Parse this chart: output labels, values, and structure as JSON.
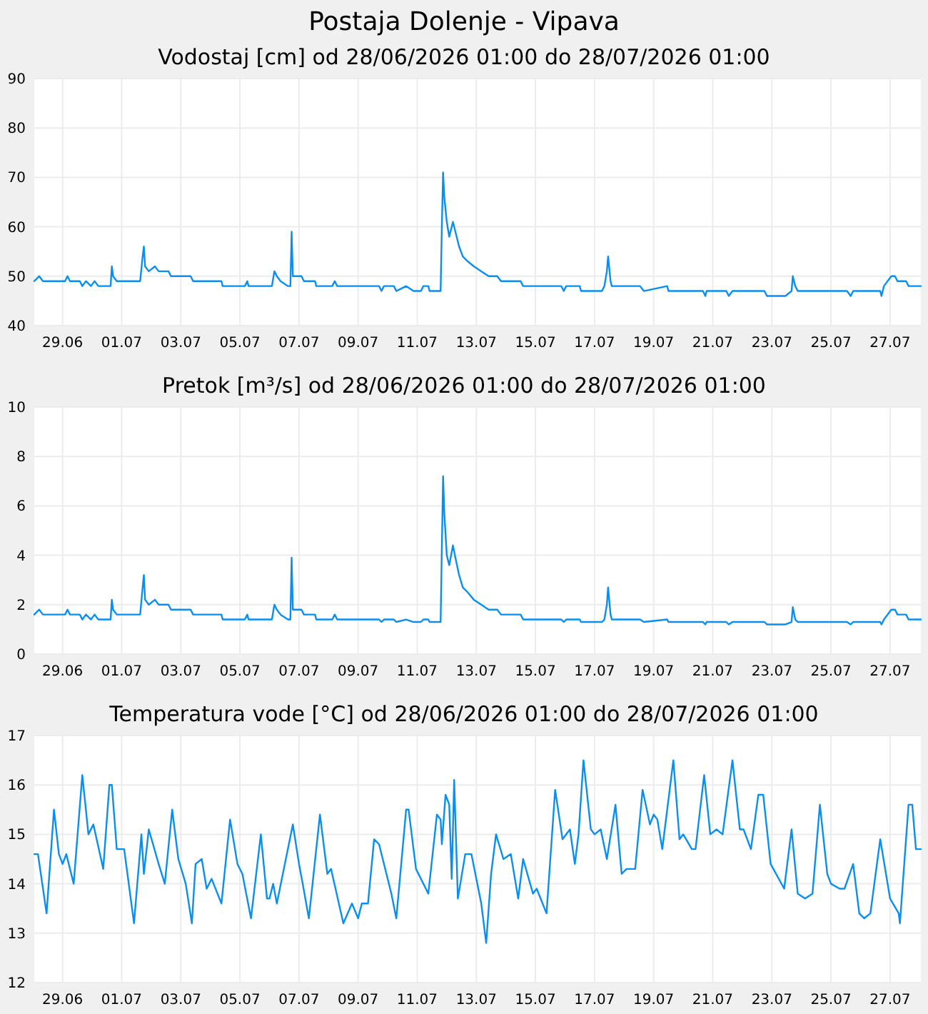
{
  "chart_data": [
    {
      "type": "line",
      "title": "Postaja Dolenje - Vipava",
      "subtitle": "Vodostaj [cm] od 28/06/2026 01:00 do 28/07/2026 01:00",
      "grid": true,
      "xlim": [
        "2026-06-28T01:00",
        "2026-07-28T01:00"
      ],
      "xticks": [
        {
          "value": "2026-06-29",
          "label": "29.06"
        },
        {
          "value": "2026-07-01",
          "label": "01.07"
        },
        {
          "value": "2026-07-03",
          "label": "03.07"
        },
        {
          "value": "2026-07-05",
          "label": "05.07"
        },
        {
          "value": "2026-07-07",
          "label": "07.07"
        },
        {
          "value": "2026-07-09",
          "label": "09.07"
        },
        {
          "value": "2026-07-11",
          "label": "11.07"
        },
        {
          "value": "2026-07-13",
          "label": "13.07"
        },
        {
          "value": "2026-07-15",
          "label": "15.07"
        },
        {
          "value": "2026-07-17",
          "label": "17.07"
        },
        {
          "value": "2026-07-19",
          "label": "19.07"
        },
        {
          "value": "2026-07-21",
          "label": "21.07"
        },
        {
          "value": "2026-07-23",
          "label": "23.07"
        },
        {
          "value": "2026-07-25",
          "label": "25.07"
        },
        {
          "value": "2026-07-27",
          "label": "27.07"
        }
      ],
      "ylim": [
        40,
        90
      ],
      "yticks": [
        40,
        50,
        60,
        70,
        80,
        90
      ],
      "x": [
        "2026-06-28T01:00",
        "2026-06-28T05:00",
        "2026-06-28T08:00",
        "2026-06-29T02:00",
        "2026-06-29T04:00",
        "2026-06-29T06:00",
        "2026-06-29T14:00",
        "2026-06-29T16:00",
        "2026-06-29T19:00",
        "2026-06-29T23:00",
        "2026-06-30T02:00",
        "2026-06-30T05:00",
        "2026-06-30T15:00",
        "2026-06-30T16:00",
        "2026-06-30T17:00",
        "2026-06-30T20:00",
        "2026-07-01T15:00",
        "2026-07-01T17:00",
        "2026-07-01T18:00",
        "2026-07-01T19:00",
        "2026-07-01T22:00",
        "2026-07-02T03:00",
        "2026-07-02T06:00",
        "2026-07-02T14:00",
        "2026-07-02T16:00",
        "2026-07-03T08:00",
        "2026-07-03T10:00",
        "2026-07-04T09:00",
        "2026-07-04T10:00",
        "2026-07-05T04:00",
        "2026-07-05T06:00",
        "2026-07-05T07:00",
        "2026-07-06T02:00",
        "2026-07-06T04:00",
        "2026-07-06T06:00",
        "2026-07-06T09:00",
        "2026-07-06T15:00",
        "2026-07-06T17:00",
        "2026-07-06T18:00",
        "2026-07-06T19:00",
        "2026-07-07T02:00",
        "2026-07-07T04:00",
        "2026-07-07T13:00",
        "2026-07-07T14:00",
        "2026-07-08T03:00",
        "2026-07-08T05:00",
        "2026-07-08T07:00",
        "2026-07-09T17:00",
        "2026-07-09T19:00",
        "2026-07-09T21:00",
        "2026-07-10T05:00",
        "2026-07-10T07:00",
        "2026-07-10T15:00",
        "2026-07-10T21:00",
        "2026-07-11T03:00",
        "2026-07-11T05:00",
        "2026-07-11T09:00",
        "2026-07-11T10:00",
        "2026-07-11T19:00",
        "2026-07-11T20:00",
        "2026-07-11T21:00",
        "2026-07-11T22:00",
        "2026-07-12T00:00",
        "2026-07-12T02:00",
        "2026-07-12T05:00",
        "2026-07-12T07:00",
        "2026-07-12T10:00",
        "2026-07-12T13:00",
        "2026-07-12T17:00",
        "2026-07-12T22:00",
        "2026-07-13T04:00",
        "2026-07-13T10:00",
        "2026-07-13T17:00",
        "2026-07-13T20:00",
        "2026-07-14T12:00",
        "2026-07-14T14:00",
        "2026-07-15T21:00",
        "2026-07-15T23:00",
        "2026-07-16T01:00",
        "2026-07-16T12:00",
        "2026-07-16T13:00",
        "2026-07-17T06:00",
        "2026-07-17T08:00",
        "2026-07-17T10:00",
        "2026-07-17T11:00",
        "2026-07-17T13:00",
        "2026-07-17T14:00",
        "2026-07-18T13:00",
        "2026-07-18T16:00",
        "2026-07-19T11:00",
        "2026-07-19T12:00",
        "2026-07-20T16:00",
        "2026-07-20T18:00",
        "2026-07-20T19:00",
        "2026-07-21T11:00",
        "2026-07-21T13:00",
        "2026-07-21T16:00",
        "2026-07-22T18:00",
        "2026-07-22T20:00",
        "2026-07-23T11:00",
        "2026-07-23T16:00",
        "2026-07-23T17:00",
        "2026-07-23T19:00",
        "2026-07-23T21:00",
        "2026-07-25T13:00",
        "2026-07-25T16:00",
        "2026-07-25T18:00",
        "2026-07-26T16:00",
        "2026-07-26T17:00",
        "2026-07-26T19:00",
        "2026-07-27T01:00",
        "2026-07-27T04:00",
        "2026-07-27T06:00",
        "2026-07-27T13:00",
        "2026-07-27T15:00",
        "2026-07-28T01:00"
      ],
      "series": [
        {
          "color": "#0a8ff0",
          "values": [
            49,
            50,
            49,
            49,
            50,
            49,
            49,
            48,
            49,
            48,
            49,
            48,
            48,
            52,
            50,
            49,
            49,
            54,
            56,
            52,
            51,
            52,
            51,
            51,
            50,
            50,
            49,
            49,
            48,
            48,
            49,
            48,
            48,
            51,
            50,
            49,
            48,
            48,
            59,
            50,
            50,
            49,
            49,
            48,
            48,
            49,
            48,
            48,
            47,
            48,
            48,
            47,
            48,
            47,
            47,
            48,
            48,
            47,
            47,
            60,
            71,
            66,
            61,
            58,
            61,
            59,
            56,
            54,
            53,
            52,
            51,
            50,
            50,
            49,
            49,
            48,
            48,
            47,
            48,
            48,
            47,
            47,
            48,
            51,
            54,
            49,
            48,
            48,
            47,
            48,
            47,
            47,
            46,
            47,
            47,
            46,
            47,
            47,
            46,
            46,
            47,
            50,
            48,
            47,
            47,
            46,
            47,
            47,
            46,
            48,
            50,
            50,
            49,
            49,
            48,
            48
          ]
        }
      ]
    },
    {
      "type": "line",
      "title": "Pretok [m³/s] od 28/06/2026 01:00 do 28/07/2026 01:00",
      "grid": true,
      "xlim": [
        "2026-06-28T01:00",
        "2026-07-28T01:00"
      ],
      "xticks": [
        {
          "value": "2026-06-29",
          "label": "29.06"
        },
        {
          "value": "2026-07-01",
          "label": "01.07"
        },
        {
          "value": "2026-07-03",
          "label": "03.07"
        },
        {
          "value": "2026-07-05",
          "label": "05.07"
        },
        {
          "value": "2026-07-07",
          "label": "07.07"
        },
        {
          "value": "2026-07-09",
          "label": "09.07"
        },
        {
          "value": "2026-07-11",
          "label": "11.07"
        },
        {
          "value": "2026-07-13",
          "label": "13.07"
        },
        {
          "value": "2026-07-15",
          "label": "15.07"
        },
        {
          "value": "2026-07-17",
          "label": "17.07"
        },
        {
          "value": "2026-07-19",
          "label": "19.07"
        },
        {
          "value": "2026-07-21",
          "label": "21.07"
        },
        {
          "value": "2026-07-23",
          "label": "23.07"
        },
        {
          "value": "2026-07-25",
          "label": "25.07"
        },
        {
          "value": "2026-07-27",
          "label": "27.07"
        }
      ],
      "ylim": [
        0,
        10
      ],
      "yticks": [
        0,
        2,
        4,
        6,
        8,
        10
      ],
      "x": [
        "2026-06-28T01:00",
        "2026-06-28T05:00",
        "2026-06-28T08:00",
        "2026-06-29T02:00",
        "2026-06-29T04:00",
        "2026-06-29T06:00",
        "2026-06-29T14:00",
        "2026-06-29T16:00",
        "2026-06-29T19:00",
        "2026-06-29T23:00",
        "2026-06-30T02:00",
        "2026-06-30T05:00",
        "2026-06-30T15:00",
        "2026-06-30T16:00",
        "2026-06-30T17:00",
        "2026-06-30T20:00",
        "2026-07-01T15:00",
        "2026-07-01T17:00",
        "2026-07-01T18:00",
        "2026-07-01T19:00",
        "2026-07-01T22:00",
        "2026-07-02T03:00",
        "2026-07-02T06:00",
        "2026-07-02T14:00",
        "2026-07-02T16:00",
        "2026-07-03T08:00",
        "2026-07-03T10:00",
        "2026-07-04T09:00",
        "2026-07-04T10:00",
        "2026-07-05T04:00",
        "2026-07-05T06:00",
        "2026-07-05T07:00",
        "2026-07-06T02:00",
        "2026-07-06T04:00",
        "2026-07-06T06:00",
        "2026-07-06T09:00",
        "2026-07-06T15:00",
        "2026-07-06T17:00",
        "2026-07-06T18:00",
        "2026-07-06T19:00",
        "2026-07-07T02:00",
        "2026-07-07T04:00",
        "2026-07-07T13:00",
        "2026-07-07T14:00",
        "2026-07-08T03:00",
        "2026-07-08T05:00",
        "2026-07-08T07:00",
        "2026-07-09T17:00",
        "2026-07-09T19:00",
        "2026-07-09T21:00",
        "2026-07-10T05:00",
        "2026-07-10T07:00",
        "2026-07-10T15:00",
        "2026-07-10T21:00",
        "2026-07-11T03:00",
        "2026-07-11T05:00",
        "2026-07-11T09:00",
        "2026-07-11T10:00",
        "2026-07-11T19:00",
        "2026-07-11T20:00",
        "2026-07-11T21:00",
        "2026-07-11T22:00",
        "2026-07-12T00:00",
        "2026-07-12T02:00",
        "2026-07-12T05:00",
        "2026-07-12T07:00",
        "2026-07-12T10:00",
        "2026-07-12T13:00",
        "2026-07-12T17:00",
        "2026-07-12T22:00",
        "2026-07-13T04:00",
        "2026-07-13T10:00",
        "2026-07-13T17:00",
        "2026-07-13T20:00",
        "2026-07-14T12:00",
        "2026-07-14T14:00",
        "2026-07-15T21:00",
        "2026-07-15T23:00",
        "2026-07-16T01:00",
        "2026-07-16T12:00",
        "2026-07-16T13:00",
        "2026-07-17T06:00",
        "2026-07-17T08:00",
        "2026-07-17T10:00",
        "2026-07-17T11:00",
        "2026-07-17T13:00",
        "2026-07-17T14:00",
        "2026-07-18T13:00",
        "2026-07-18T16:00",
        "2026-07-19T11:00",
        "2026-07-19T12:00",
        "2026-07-20T16:00",
        "2026-07-20T18:00",
        "2026-07-20T19:00",
        "2026-07-21T11:00",
        "2026-07-21T13:00",
        "2026-07-21T16:00",
        "2026-07-22T18:00",
        "2026-07-22T20:00",
        "2026-07-23T11:00",
        "2026-07-23T16:00",
        "2026-07-23T17:00",
        "2026-07-23T19:00",
        "2026-07-23T21:00",
        "2026-07-25T13:00",
        "2026-07-25T16:00",
        "2026-07-25T18:00",
        "2026-07-26T16:00",
        "2026-07-26T17:00",
        "2026-07-26T19:00",
        "2026-07-27T01:00",
        "2026-07-27T04:00",
        "2026-07-27T06:00",
        "2026-07-27T13:00",
        "2026-07-27T15:00",
        "2026-07-28T01:00"
      ],
      "series": [
        {
          "color": "#0a8ff0",
          "values": [
            1.6,
            1.8,
            1.6,
            1.6,
            1.8,
            1.6,
            1.6,
            1.4,
            1.6,
            1.4,
            1.6,
            1.4,
            1.4,
            2.2,
            1.8,
            1.6,
            1.6,
            2.7,
            3.2,
            2.2,
            2.0,
            2.2,
            2.0,
            2.0,
            1.8,
            1.8,
            1.6,
            1.6,
            1.4,
            1.4,
            1.6,
            1.4,
            1.4,
            2.0,
            1.8,
            1.6,
            1.4,
            1.4,
            3.9,
            1.8,
            1.8,
            1.6,
            1.6,
            1.4,
            1.4,
            1.6,
            1.4,
            1.4,
            1.3,
            1.4,
            1.4,
            1.3,
            1.4,
            1.3,
            1.3,
            1.4,
            1.4,
            1.3,
            1.3,
            4.3,
            7.2,
            5.7,
            4.0,
            3.6,
            4.4,
            3.9,
            3.2,
            2.7,
            2.5,
            2.2,
            2.0,
            1.8,
            1.8,
            1.6,
            1.6,
            1.4,
            1.4,
            1.3,
            1.4,
            1.4,
            1.3,
            1.3,
            1.4,
            2.0,
            2.7,
            1.6,
            1.4,
            1.4,
            1.3,
            1.4,
            1.3,
            1.3,
            1.2,
            1.3,
            1.3,
            1.2,
            1.3,
            1.3,
            1.2,
            1.2,
            1.3,
            1.9,
            1.4,
            1.3,
            1.3,
            1.2,
            1.3,
            1.3,
            1.2,
            1.4,
            1.8,
            1.8,
            1.6,
            1.6,
            1.4,
            1.4
          ]
        }
      ]
    },
    {
      "type": "line",
      "title": "Temperatura vode [°C] od 28/06/2026 01:00 do 28/07/2026 01:00",
      "grid": true,
      "xlim": [
        "2026-06-28T01:00",
        "2026-07-28T01:00"
      ],
      "xticks": [
        {
          "value": "2026-06-29",
          "label": "29.06"
        },
        {
          "value": "2026-07-01",
          "label": "01.07"
        },
        {
          "value": "2026-07-03",
          "label": "03.07"
        },
        {
          "value": "2026-07-05",
          "label": "05.07"
        },
        {
          "value": "2026-07-07",
          "label": "07.07"
        },
        {
          "value": "2026-07-09",
          "label": "09.07"
        },
        {
          "value": "2026-07-11",
          "label": "11.07"
        },
        {
          "value": "2026-07-13",
          "label": "13.07"
        },
        {
          "value": "2026-07-15",
          "label": "15.07"
        },
        {
          "value": "2026-07-17",
          "label": "17.07"
        },
        {
          "value": "2026-07-19",
          "label": "19.07"
        },
        {
          "value": "2026-07-21",
          "label": "21.07"
        },
        {
          "value": "2026-07-23",
          "label": "23.07"
        },
        {
          "value": "2026-07-25",
          "label": "25.07"
        },
        {
          "value": "2026-07-27",
          "label": "27.07"
        }
      ],
      "ylim": [
        12,
        17
      ],
      "yticks": [
        12,
        13,
        14,
        15,
        16,
        17
      ],
      "x": [
        "2026-06-28T01:00",
        "2026-06-28T04:00",
        "2026-06-28T11:00",
        "2026-06-28T17:00",
        "2026-06-28T21:00",
        "2026-06-29T00:00",
        "2026-06-29T03:00",
        "2026-06-29T09:00",
        "2026-06-29T16:00",
        "2026-06-29T21:00",
        "2026-06-30T01:00",
        "2026-06-30T09:00",
        "2026-06-30T14:00",
        "2026-06-30T16:00",
        "2026-06-30T20:00",
        "2026-07-01T02:00",
        "2026-07-01T10:00",
        "2026-07-01T16:00",
        "2026-07-01T18:00",
        "2026-07-01T22:00",
        "2026-07-02T06:00",
        "2026-07-02T11:00",
        "2026-07-02T17:00",
        "2026-07-02T22:00",
        "2026-07-03T04:00",
        "2026-07-03T09:00",
        "2026-07-03T12:00",
        "2026-07-03T17:00",
        "2026-07-03T21:00",
        "2026-07-04T01:00",
        "2026-07-04T09:00",
        "2026-07-04T16:00",
        "2026-07-04T22:00",
        "2026-07-05T02:00",
        "2026-07-05T09:00",
        "2026-07-05T17:00",
        "2026-07-05T22:00",
        "2026-07-06T00:00",
        "2026-07-06T03:00",
        "2026-07-06T06:00",
        "2026-07-06T19:00",
        "2026-07-07T00:00",
        "2026-07-07T03:00",
        "2026-07-07T08:00",
        "2026-07-07T17:00",
        "2026-07-07T23:00",
        "2026-07-08T02:00",
        "2026-07-08T12:00",
        "2026-07-08T19:00",
        "2026-07-09T00:00",
        "2026-07-09T03:00",
        "2026-07-09T08:00",
        "2026-07-09T13:00",
        "2026-07-09T17:00",
        "2026-07-10T03:00",
        "2026-07-10T07:00",
        "2026-07-10T15:00",
        "2026-07-10T17:00",
        "2026-07-10T23:00",
        "2026-07-11T07:00",
        "2026-07-11T09:00",
        "2026-07-11T16:00",
        "2026-07-11T19:00",
        "2026-07-11T20:00",
        "2026-07-11T23:00",
        "2026-07-12T02:00",
        "2026-07-12T04:00",
        "2026-07-12T06:00",
        "2026-07-12T09:00",
        "2026-07-12T15:00",
        "2026-07-12T20:00",
        "2026-07-13T04:00",
        "2026-07-13T08:00",
        "2026-07-13T12:00",
        "2026-07-13T16:00",
        "2026-07-13T22:00",
        "2026-07-14T04:00",
        "2026-07-14T10:00",
        "2026-07-14T14:00",
        "2026-07-14T22:00",
        "2026-07-15T01:00",
        "2026-07-15T09:00",
        "2026-07-15T16:00",
        "2026-07-15T22:00",
        "2026-07-16T04:00",
        "2026-07-16T08:00",
        "2026-07-16T11:00",
        "2026-07-16T15:00",
        "2026-07-16T21:00",
        "2026-07-17T00:00",
        "2026-07-17T05:00",
        "2026-07-17T10:00",
        "2026-07-17T17:00",
        "2026-07-17T22:00",
        "2026-07-18T02:00",
        "2026-07-18T09:00",
        "2026-07-18T15:00",
        "2026-07-18T21:00",
        "2026-07-19T00:00",
        "2026-07-19T03:00",
        "2026-07-19T07:00",
        "2026-07-19T16:00",
        "2026-07-19T21:00",
        "2026-07-20T00:00",
        "2026-07-20T07:00",
        "2026-07-20T10:00",
        "2026-07-20T17:00",
        "2026-07-20T22:00",
        "2026-07-21T03:00",
        "2026-07-21T08:00",
        "2026-07-21T16:00",
        "2026-07-21T22:00",
        "2026-07-22T01:00",
        "2026-07-22T07:00",
        "2026-07-22T13:00",
        "2026-07-22T17:00",
        "2026-07-22T23:00",
        "2026-07-23T10:00",
        "2026-07-23T16:00",
        "2026-07-23T21:00",
        "2026-07-24T03:00",
        "2026-07-24T09:00",
        "2026-07-24T15:00",
        "2026-07-24T21:00",
        "2026-07-25T00:00",
        "2026-07-25T07:00",
        "2026-07-25T11:00",
        "2026-07-25T18:00",
        "2026-07-25T23:00",
        "2026-07-26T03:00",
        "2026-07-26T08:00",
        "2026-07-26T16:00",
        "2026-07-27T00:00",
        "2026-07-27T07:00",
        "2026-07-27T08:00",
        "2026-07-27T15:00",
        "2026-07-27T18:00",
        "2026-07-27T21:00",
        "2026-07-28T01:00"
      ],
      "series": [
        {
          "color": "#0a8ff0",
          "values": [
            14.6,
            14.6,
            13.4,
            15.5,
            14.6,
            14.4,
            14.6,
            14.0,
            16.2,
            15.0,
            15.2,
            14.3,
            16.0,
            16.0,
            14.7,
            14.7,
            13.2,
            15.0,
            14.2,
            15.1,
            14.4,
            14.0,
            15.5,
            14.5,
            14.0,
            13.2,
            14.4,
            14.5,
            13.9,
            14.1,
            13.6,
            15.3,
            14.4,
            14.2,
            13.3,
            15.0,
            13.7,
            13.7,
            14.0,
            13.6,
            15.2,
            14.4,
            14.0,
            13.3,
            15.4,
            14.2,
            14.3,
            13.2,
            13.6,
            13.3,
            13.6,
            13.6,
            14.9,
            14.8,
            13.8,
            13.3,
            15.5,
            15.5,
            14.3,
            13.9,
            13.8,
            15.4,
            15.3,
            14.8,
            15.8,
            15.6,
            14.1,
            16.1,
            13.7,
            14.6,
            14.6,
            13.6,
            12.8,
            14.2,
            15.0,
            14.5,
            14.6,
            13.7,
            14.5,
            13.8,
            13.9,
            13.4,
            15.9,
            14.9,
            15.1,
            14.4,
            15.0,
            16.5,
            15.1,
            15.0,
            15.1,
            14.5,
            15.6,
            14.2,
            14.3,
            14.3,
            15.9,
            15.2,
            15.4,
            15.3,
            14.7,
            16.5,
            14.9,
            15.0,
            14.7,
            14.7,
            16.2,
            15.0,
            15.1,
            15.0,
            16.5,
            15.1,
            15.1,
            14.7,
            15.8,
            15.8,
            14.4,
            13.9,
            15.1,
            13.8,
            13.7,
            13.8,
            15.6,
            14.2,
            14.0,
            13.9,
            13.9,
            14.4,
            13.4,
            13.3,
            13.4,
            14.9,
            13.7,
            13.4,
            13.2,
            15.6,
            15.6,
            14.7,
            14.7
          ]
        }
      ]
    }
  ]
}
